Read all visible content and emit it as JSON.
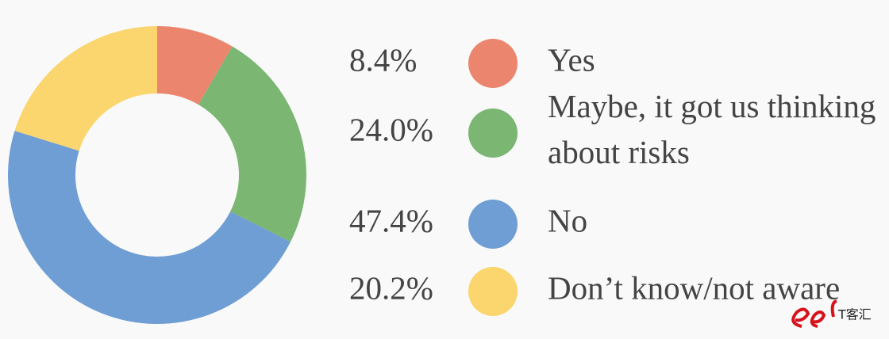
{
  "chart_data": {
    "type": "donut",
    "categories": [
      "Yes",
      "Maybe, it got us thinking about risks",
      "No",
      "Don’t know/not aware"
    ],
    "values": [
      8.4,
      24.0,
      47.4,
      20.2
    ],
    "value_labels": [
      "8.4%",
      "24.0%",
      "47.4%",
      "20.2%"
    ],
    "colors": [
      "#ec856d",
      "#7bb673",
      "#6f9ed4",
      "#fbd56d"
    ]
  },
  "watermark": "T客汇"
}
